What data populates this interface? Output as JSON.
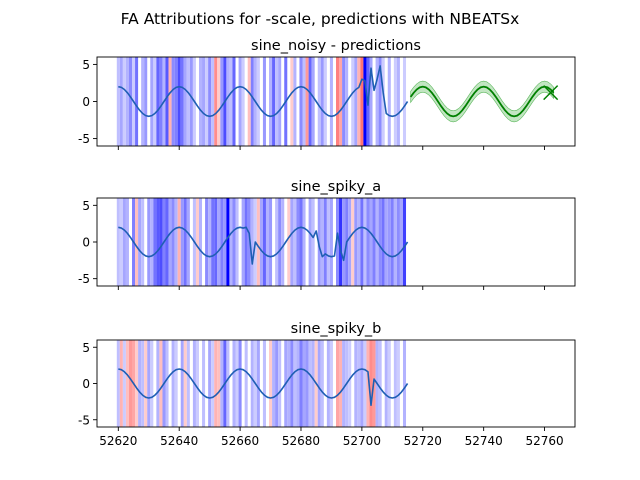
{
  "figure": {
    "suptitle": "FA Attributions for -scale, predictions with NBEATSx"
  },
  "colors": {
    "series": "#1f5fb4",
    "forecast": "#008000",
    "forecast_band": "#8fd18f",
    "positive_attr": "#ff0000",
    "negative_attr": "#0000ff"
  },
  "chart_data": [
    {
      "type": "line",
      "title": "sine_noisy - predictions",
      "xlim": [
        52613,
        52770
      ],
      "ylim": [
        -6,
        6
      ],
      "xticks": [
        52620,
        52640,
        52660,
        52680,
        52700,
        52720,
        52740,
        52760
      ],
      "yticks": [
        -5,
        0,
        5
      ],
      "show_xtick_labels": false,
      "history": {
        "x_start": 52620,
        "x_end": 52715,
        "amplitude": 2,
        "period": 20,
        "phase_offset": 0.25,
        "spikes": [
          {
            "x": 52700,
            "y": 3.0
          },
          {
            "x": 52701,
            "y": 2.8
          },
          {
            "x": 52702,
            "y": -0.5
          },
          {
            "x": 52703,
            "y": 4.5
          },
          {
            "x": 52704,
            "y": 1.5
          },
          {
            "x": 52705,
            "y": 3.0
          },
          {
            "x": 52706,
            "y": 4.8
          },
          {
            "x": 52707,
            "y": 1.2
          }
        ]
      },
      "forecast": {
        "x_start": 52716,
        "x_end": 52763,
        "band_width": 0.75,
        "markers": [
          {
            "x": 52762,
            "y": 1.2
          }
        ]
      },
      "attributions": [
        {
          "x": 52620,
          "v": -0.25
        },
        {
          "x": 52621,
          "v": -0.35
        },
        {
          "x": 52622,
          "v": -0.2
        },
        {
          "x": 52623,
          "v": -0.3
        },
        {
          "x": 52624,
          "v": -0.45
        },
        {
          "x": 52625,
          "v": -0.2
        },
        {
          "x": 52626,
          "v": -0.55
        },
        {
          "x": 52628,
          "v": -0.3
        },
        {
          "x": 52629,
          "v": -0.4
        },
        {
          "x": 52631,
          "v": -0.35
        },
        {
          "x": 52632,
          "v": -0.2
        },
        {
          "x": 52633,
          "v": -0.6
        },
        {
          "x": 52634,
          "v": -0.5
        },
        {
          "x": 52635,
          "v": -0.3
        },
        {
          "x": 52636,
          "v": -0.65
        },
        {
          "x": 52637,
          "v": 0.3
        },
        {
          "x": 52638,
          "v": -0.45
        },
        {
          "x": 52639,
          "v": -0.5
        },
        {
          "x": 52640,
          "v": -0.7
        },
        {
          "x": 52641,
          "v": -0.55
        },
        {
          "x": 52642,
          "v": -0.35
        },
        {
          "x": 52643,
          "v": -0.25
        },
        {
          "x": 52644,
          "v": -0.4
        },
        {
          "x": 52645,
          "v": -0.2
        },
        {
          "x": 52647,
          "v": -0.3
        },
        {
          "x": 52648,
          "v": -0.35
        },
        {
          "x": 52649,
          "v": -0.2
        },
        {
          "x": 52650,
          "v": -0.45
        },
        {
          "x": 52651,
          "v": -0.25
        },
        {
          "x": 52652,
          "v": 0.45
        },
        {
          "x": 52653,
          "v": 0.2
        },
        {
          "x": 52654,
          "v": -0.4
        },
        {
          "x": 52655,
          "v": -0.7
        },
        {
          "x": 52656,
          "v": -0.3
        },
        {
          "x": 52657,
          "v": -0.25
        },
        {
          "x": 52658,
          "v": -0.6
        },
        {
          "x": 52660,
          "v": -0.35
        },
        {
          "x": 52661,
          "v": -0.2
        },
        {
          "x": 52663,
          "v": 0.25
        },
        {
          "x": 52664,
          "v": -0.5
        },
        {
          "x": 52665,
          "v": -0.3
        },
        {
          "x": 52666,
          "v": -0.2
        },
        {
          "x": 52668,
          "v": -0.4
        },
        {
          "x": 52670,
          "v": -0.3
        },
        {
          "x": 52671,
          "v": -0.6
        },
        {
          "x": 52672,
          "v": -0.25
        },
        {
          "x": 52673,
          "v": -0.35
        },
        {
          "x": 52675,
          "v": -0.55
        },
        {
          "x": 52677,
          "v": 0.2
        },
        {
          "x": 52678,
          "v": -0.3
        },
        {
          "x": 52680,
          "v": -0.45
        },
        {
          "x": 52681,
          "v": -0.25
        },
        {
          "x": 52682,
          "v": 0.4
        },
        {
          "x": 52683,
          "v": -0.6
        },
        {
          "x": 52684,
          "v": -0.35
        },
        {
          "x": 52686,
          "v": -0.25
        },
        {
          "x": 52687,
          "v": -0.4
        },
        {
          "x": 52688,
          "v": -0.2
        },
        {
          "x": 52690,
          "v": -0.3
        },
        {
          "x": 52692,
          "v": 0.5
        },
        {
          "x": 52693,
          "v": 0.35
        },
        {
          "x": 52694,
          "v": -0.45
        },
        {
          "x": 52695,
          "v": -0.3
        },
        {
          "x": 52697,
          "v": -0.2
        },
        {
          "x": 52698,
          "v": -0.35
        },
        {
          "x": 52699,
          "v": 0.3
        },
        {
          "x": 52700,
          "v": 0.55
        },
        {
          "x": 52701,
          "v": -1.0
        },
        {
          "x": 52702,
          "v": -0.6
        },
        {
          "x": 52703,
          "v": -0.35
        },
        {
          "x": 52705,
          "v": -0.3
        },
        {
          "x": 52706,
          "v": -0.45
        },
        {
          "x": 52707,
          "v": -0.2
        },
        {
          "x": 52709,
          "v": -0.3
        },
        {
          "x": 52711,
          "v": -0.2
        },
        {
          "x": 52712,
          "v": -0.3
        },
        {
          "x": 52714,
          "v": -0.2
        }
      ]
    },
    {
      "type": "line",
      "title": "sine_spiky_a",
      "xlim": [
        52613,
        52770
      ],
      "ylim": [
        -6,
        6
      ],
      "xticks": [
        52620,
        52640,
        52660,
        52680,
        52700,
        52720,
        52740,
        52760
      ],
      "yticks": [
        -5,
        0,
        5
      ],
      "show_xtick_labels": false,
      "history": {
        "x_start": 52620,
        "x_end": 52715,
        "amplitude": 2,
        "period": 20,
        "phase_offset": 0.25,
        "spikes": [
          {
            "x": 52662,
            "y": 2.0
          },
          {
            "x": 52664,
            "y": -3.0
          },
          {
            "x": 52685,
            "y": 1.5
          },
          {
            "x": 52687,
            "y": -2.0
          },
          {
            "x": 52692,
            "y": 1.2
          },
          {
            "x": 52694,
            "y": -2.5
          }
        ]
      },
      "attributions": [
        {
          "x": 52620,
          "v": -0.25
        },
        {
          "x": 52621,
          "v": -0.2
        },
        {
          "x": 52622,
          "v": -0.35
        },
        {
          "x": 52623,
          "v": -0.3
        },
        {
          "x": 52625,
          "v": -0.5
        },
        {
          "x": 52626,
          "v": 0.25
        },
        {
          "x": 52627,
          "v": -0.35
        },
        {
          "x": 52628,
          "v": -0.25
        },
        {
          "x": 52630,
          "v": -0.4
        },
        {
          "x": 52631,
          "v": -0.3
        },
        {
          "x": 52632,
          "v": -0.55
        },
        {
          "x": 52633,
          "v": -0.65
        },
        {
          "x": 52634,
          "v": -0.7
        },
        {
          "x": 52635,
          "v": -0.5
        },
        {
          "x": 52636,
          "v": -0.6
        },
        {
          "x": 52637,
          "v": -0.35
        },
        {
          "x": 52638,
          "v": -0.45
        },
        {
          "x": 52639,
          "v": -0.3
        },
        {
          "x": 52640,
          "v": 0.3
        },
        {
          "x": 52641,
          "v": -0.4
        },
        {
          "x": 52642,
          "v": -0.55
        },
        {
          "x": 52643,
          "v": -0.35
        },
        {
          "x": 52645,
          "v": -0.25
        },
        {
          "x": 52646,
          "v": 0.2
        },
        {
          "x": 52647,
          "v": -0.3
        },
        {
          "x": 52649,
          "v": -0.45
        },
        {
          "x": 52650,
          "v": -0.3
        },
        {
          "x": 52651,
          "v": -0.55
        },
        {
          "x": 52652,
          "v": -0.6
        },
        {
          "x": 52653,
          "v": -0.35
        },
        {
          "x": 52654,
          "v": -0.5
        },
        {
          "x": 52655,
          "v": -0.4
        },
        {
          "x": 52656,
          "v": -1.0
        },
        {
          "x": 52657,
          "v": -0.3
        },
        {
          "x": 52658,
          "v": -0.45
        },
        {
          "x": 52659,
          "v": -0.25
        },
        {
          "x": 52661,
          "v": -0.35
        },
        {
          "x": 52662,
          "v": -0.55
        },
        {
          "x": 52663,
          "v": -0.45
        },
        {
          "x": 52664,
          "v": -0.3
        },
        {
          "x": 52665,
          "v": -0.2
        },
        {
          "x": 52666,
          "v": 0.25
        },
        {
          "x": 52667,
          "v": -0.35
        },
        {
          "x": 52668,
          "v": -0.6
        },
        {
          "x": 52669,
          "v": -0.3
        },
        {
          "x": 52670,
          "v": -0.4
        },
        {
          "x": 52672,
          "v": -0.25
        },
        {
          "x": 52673,
          "v": -0.45
        },
        {
          "x": 52674,
          "v": -0.3
        },
        {
          "x": 52676,
          "v": 0.2
        },
        {
          "x": 52677,
          "v": -0.35
        },
        {
          "x": 52678,
          "v": -0.25
        },
        {
          "x": 52679,
          "v": -0.45
        },
        {
          "x": 52680,
          "v": -0.55
        },
        {
          "x": 52681,
          "v": -0.3
        },
        {
          "x": 52683,
          "v": -0.35
        },
        {
          "x": 52684,
          "v": -0.25
        },
        {
          "x": 52686,
          "v": -0.4
        },
        {
          "x": 52687,
          "v": -0.3
        },
        {
          "x": 52688,
          "v": -0.5
        },
        {
          "x": 52689,
          "v": -0.25
        },
        {
          "x": 52690,
          "v": -0.35
        },
        {
          "x": 52692,
          "v": -0.45
        },
        {
          "x": 52693,
          "v": -0.8
        },
        {
          "x": 52694,
          "v": -0.4
        },
        {
          "x": 52695,
          "v": -0.5
        },
        {
          "x": 52696,
          "v": -0.35
        },
        {
          "x": 52697,
          "v": 0.2
        },
        {
          "x": 52698,
          "v": -0.4
        },
        {
          "x": 52699,
          "v": -0.3
        },
        {
          "x": 52700,
          "v": -0.55
        },
        {
          "x": 52701,
          "v": -0.25
        },
        {
          "x": 52702,
          "v": -0.45
        },
        {
          "x": 52703,
          "v": -0.35
        },
        {
          "x": 52704,
          "v": -0.5
        },
        {
          "x": 52705,
          "v": -0.3
        },
        {
          "x": 52706,
          "v": -0.45
        },
        {
          "x": 52707,
          "v": -0.55
        },
        {
          "x": 52708,
          "v": -0.35
        },
        {
          "x": 52709,
          "v": -0.4
        },
        {
          "x": 52710,
          "v": -0.5
        },
        {
          "x": 52711,
          "v": -0.3
        },
        {
          "x": 52712,
          "v": -0.45
        },
        {
          "x": 52713,
          "v": -0.35
        },
        {
          "x": 52714,
          "v": -0.75
        }
      ]
    },
    {
      "type": "line",
      "title": "sine_spiky_b",
      "xlim": [
        52613,
        52770
      ],
      "ylim": [
        -6,
        6
      ],
      "xticks": [
        52620,
        52640,
        52660,
        52680,
        52700,
        52720,
        52740,
        52760
      ],
      "yticks": [
        -5,
        0,
        5
      ],
      "show_xtick_labels": true,
      "history": {
        "x_start": 52620,
        "x_end": 52715,
        "amplitude": 2,
        "period": 20,
        "phase_offset": 0.25,
        "spikes": [
          {
            "x": 52703,
            "y": -3.0
          }
        ]
      },
      "attributions": [
        {
          "x": 52620,
          "v": -0.25
        },
        {
          "x": 52621,
          "v": 0.3
        },
        {
          "x": 52622,
          "v": -0.2
        },
        {
          "x": 52623,
          "v": 0.25
        },
        {
          "x": 52624,
          "v": 0.4
        },
        {
          "x": 52625,
          "v": 0.35
        },
        {
          "x": 52626,
          "v": 0.2
        },
        {
          "x": 52627,
          "v": -0.3
        },
        {
          "x": 52628,
          "v": -0.25
        },
        {
          "x": 52629,
          "v": 0.2
        },
        {
          "x": 52630,
          "v": -0.35
        },
        {
          "x": 52631,
          "v": -0.2
        },
        {
          "x": 52633,
          "v": -0.3
        },
        {
          "x": 52634,
          "v": 0.25
        },
        {
          "x": 52635,
          "v": -0.4
        },
        {
          "x": 52636,
          "v": -0.25
        },
        {
          "x": 52638,
          "v": -0.3
        },
        {
          "x": 52639,
          "v": -0.2
        },
        {
          "x": 52641,
          "v": -0.35
        },
        {
          "x": 52642,
          "v": 0.2
        },
        {
          "x": 52643,
          "v": -0.25
        },
        {
          "x": 52645,
          "v": -0.3
        },
        {
          "x": 52646,
          "v": -0.2
        },
        {
          "x": 52648,
          "v": -0.25
        },
        {
          "x": 52650,
          "v": -0.35
        },
        {
          "x": 52651,
          "v": -0.2
        },
        {
          "x": 52652,
          "v": 0.3
        },
        {
          "x": 52653,
          "v": 0.25
        },
        {
          "x": 52654,
          "v": -0.3
        },
        {
          "x": 52655,
          "v": -0.6
        },
        {
          "x": 52656,
          "v": -0.25
        },
        {
          "x": 52658,
          "v": -0.3
        },
        {
          "x": 52659,
          "v": -0.2
        },
        {
          "x": 52660,
          "v": -0.45
        },
        {
          "x": 52662,
          "v": -0.25
        },
        {
          "x": 52664,
          "v": -0.3
        },
        {
          "x": 52665,
          "v": -0.2
        },
        {
          "x": 52666,
          "v": -0.35
        },
        {
          "x": 52668,
          "v": -0.25
        },
        {
          "x": 52670,
          "v": 0.2
        },
        {
          "x": 52671,
          "v": -0.3
        },
        {
          "x": 52672,
          "v": -0.4
        },
        {
          "x": 52673,
          "v": -0.25
        },
        {
          "x": 52675,
          "v": -0.35
        },
        {
          "x": 52676,
          "v": -0.3
        },
        {
          "x": 52677,
          "v": -0.45
        },
        {
          "x": 52678,
          "v": -0.25
        },
        {
          "x": 52679,
          "v": -0.3
        },
        {
          "x": 52680,
          "v": -0.5
        },
        {
          "x": 52681,
          "v": -0.35
        },
        {
          "x": 52682,
          "v": -0.4
        },
        {
          "x": 52683,
          "v": -0.25
        },
        {
          "x": 52684,
          "v": -0.3
        },
        {
          "x": 52685,
          "v": 0.2
        },
        {
          "x": 52686,
          "v": -0.35
        },
        {
          "x": 52687,
          "v": -0.25
        },
        {
          "x": 52689,
          "v": -0.3
        },
        {
          "x": 52690,
          "v": -0.2
        },
        {
          "x": 52692,
          "v": 0.35
        },
        {
          "x": 52693,
          "v": 0.3
        },
        {
          "x": 52694,
          "v": -0.3
        },
        {
          "x": 52695,
          "v": -0.25
        },
        {
          "x": 52696,
          "v": -0.2
        },
        {
          "x": 52698,
          "v": -0.3
        },
        {
          "x": 52699,
          "v": -0.25
        },
        {
          "x": 52700,
          "v": -0.35
        },
        {
          "x": 52701,
          "v": -0.2
        },
        {
          "x": 52702,
          "v": 0.3
        },
        {
          "x": 52703,
          "v": 0.45
        },
        {
          "x": 52704,
          "v": 0.4
        },
        {
          "x": 52705,
          "v": -0.3
        },
        {
          "x": 52706,
          "v": -0.25
        },
        {
          "x": 52708,
          "v": -0.3
        },
        {
          "x": 52709,
          "v": -0.2
        },
        {
          "x": 52711,
          "v": -0.25
        },
        {
          "x": 52712,
          "v": -0.2
        },
        {
          "x": 52714,
          "v": -0.3
        }
      ]
    }
  ]
}
